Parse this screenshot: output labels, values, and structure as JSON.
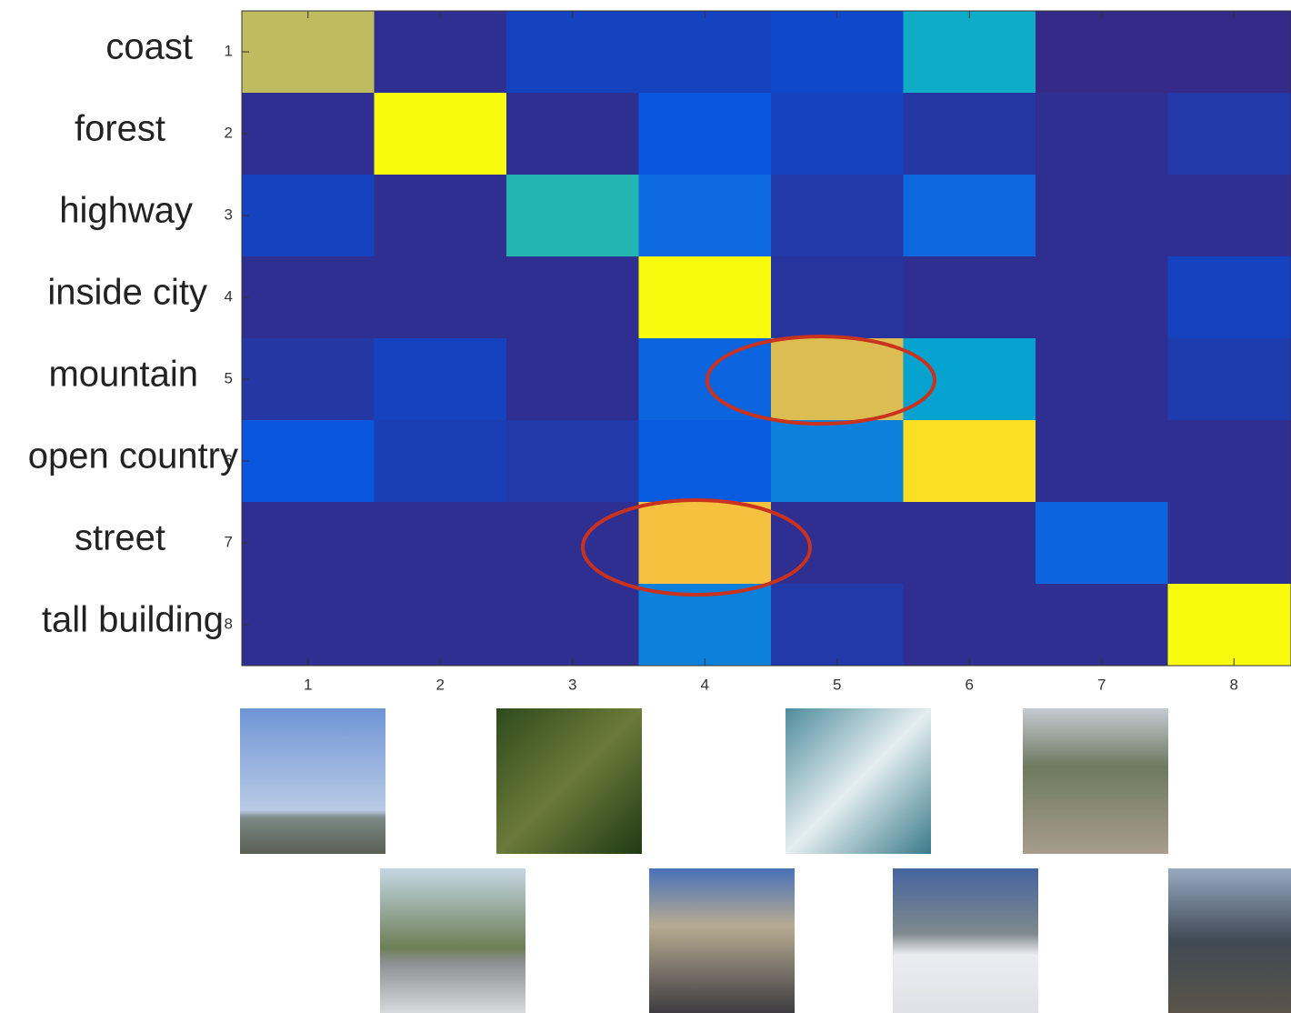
{
  "chart_data": {
    "type": "heatmap",
    "row_labels": [
      "coast",
      "forest",
      "highway",
      "inside city",
      "mountain",
      "open country",
      "street",
      "tall building"
    ],
    "xticks": [
      1,
      2,
      3,
      4,
      5,
      6,
      7,
      8
    ],
    "yticks": [
      1,
      2,
      3,
      4,
      5,
      6,
      7,
      8
    ],
    "colormap": "parula",
    "values": [
      [
        0.78,
        0.02,
        0.1,
        0.1,
        0.12,
        0.5,
        0.0,
        0.0
      ],
      [
        0.02,
        1.0,
        0.02,
        0.18,
        0.1,
        0.05,
        0.02,
        0.06
      ],
      [
        0.1,
        0.02,
        0.58,
        0.28,
        0.06,
        0.27,
        0.02,
        0.02
      ],
      [
        0.02,
        0.02,
        0.02,
        1.0,
        0.04,
        0.02,
        0.02,
        0.1
      ],
      [
        0.05,
        0.1,
        0.02,
        0.25,
        0.82,
        0.45,
        0.02,
        0.07
      ],
      [
        0.18,
        0.08,
        0.06,
        0.2,
        0.35,
        0.95,
        0.02,
        0.02
      ],
      [
        0.02,
        0.02,
        0.02,
        0.88,
        0.02,
        0.02,
        0.25,
        0.02
      ],
      [
        0.02,
        0.02,
        0.02,
        0.35,
        0.06,
        0.02,
        0.02,
        1.0
      ]
    ]
  }
}
